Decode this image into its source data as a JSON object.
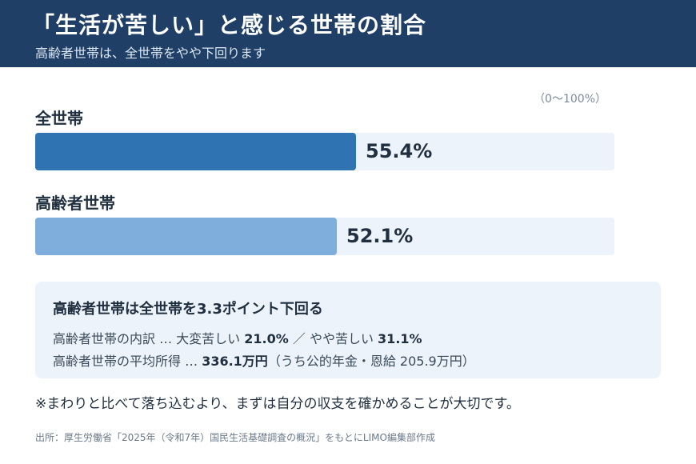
{
  "header": {
    "title": "「生活が苦しい」と感じる世帯の割合",
    "subtitle": "高齢者世帯は、全世帯をやや下回ります"
  },
  "range_note": "（0〜100%）",
  "chart_data": {
    "type": "bar",
    "orientation": "horizontal",
    "categories": [
      "全世帯",
      "高齢者世帯"
    ],
    "values": [
      55.4,
      52.1
    ],
    "value_labels": [
      "55.4%",
      "52.1%"
    ],
    "colors": [
      "#2f73b3",
      "#7faedc"
    ],
    "track_color": "#edf3fa",
    "xlim": [
      0,
      100
    ]
  },
  "note": {
    "heading": "高齢者世帯は全世帯を3.3ポイント下回る",
    "line1_prefix": "高齢者世帯の内訳 … 大変苦しい ",
    "line1_value1": "21.0%",
    "line1_middle": " ／ やや苦しい ",
    "line1_value2": "31.1%",
    "line2_prefix": "高齢者世帯の平均所得 … ",
    "line2_value": "336.1万円",
    "line2_suffix": "（うち公的年金・恩給 205.9万円）"
  },
  "footnote": "※まわりと比べて落ち込むより、まずは自分の収支を確かめることが大切です。",
  "source": "出所：厚生労働省「2025年（令和7年）国民生活基礎調査の概況」をもとにLIMO編集部作成"
}
